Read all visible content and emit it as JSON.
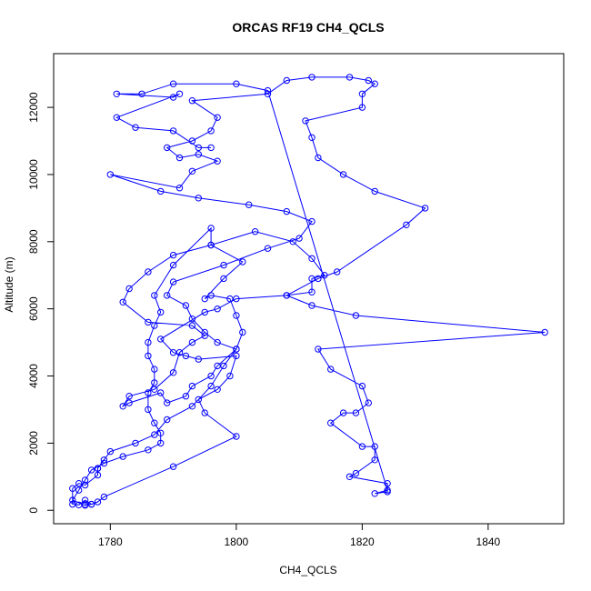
{
  "chart_data": {
    "type": "line",
    "title": "ORCAS RF19 CH4_QCLS",
    "xlabel": "CH4_QCLS",
    "ylabel": "Altitude (m)",
    "xlim": [
      1771,
      1852
    ],
    "ylim": [
      -400,
      13600
    ],
    "x_ticks": [
      1780,
      1800,
      1820,
      1840
    ],
    "y_ticks": [
      0,
      2000,
      4000,
      6000,
      8000,
      10000,
      12000
    ],
    "x_tick_labels": [
      "1780",
      "1800",
      "1820",
      "1840"
    ],
    "y_tick_labels": [
      "0",
      "2000",
      "4000",
      "6000",
      "8000",
      "10000",
      "12000"
    ],
    "markers": "open-circle",
    "series": [
      {
        "color": "#0000ff",
        "points": [
          [
            1776,
            170
          ],
          [
            1777,
            180
          ],
          [
            1776,
            300
          ],
          [
            1775,
            160
          ],
          [
            1774,
            180
          ],
          [
            1774,
            650
          ],
          [
            1775,
            800
          ],
          [
            1776,
            750
          ],
          [
            1778,
            1050
          ],
          [
            1778,
            1250
          ],
          [
            1778,
            1250
          ],
          [
            1779,
            1500
          ],
          [
            1780,
            1750
          ],
          [
            1784,
            2000
          ],
          [
            1787,
            2250
          ],
          [
            1789,
            2700
          ],
          [
            1793,
            3100
          ],
          [
            1796,
            3700
          ],
          [
            1798,
            4300
          ],
          [
            1800,
            4800
          ],
          [
            1801,
            5300
          ],
          [
            1800,
            5800
          ],
          [
            1799,
            6300
          ],
          [
            1796,
            6400
          ],
          [
            1795,
            6300
          ],
          [
            1798,
            6900
          ],
          [
            1801,
            7400
          ],
          [
            1796,
            7900
          ],
          [
            1796,
            8400
          ],
          [
            1790,
            7300
          ],
          [
            1787,
            6400
          ],
          [
            1788,
            5900
          ],
          [
            1787,
            5500
          ],
          [
            1786,
            5000
          ],
          [
            1786,
            4600
          ],
          [
            1787,
            4200
          ],
          [
            1787,
            3800
          ],
          [
            1786,
            3500
          ],
          [
            1786,
            3000
          ],
          [
            1787,
            2600
          ],
          [
            1788,
            2300
          ],
          [
            1788,
            2000
          ],
          [
            1786,
            1800
          ],
          [
            1782,
            1600
          ],
          [
            1779,
            1400
          ],
          [
            1777,
            1200
          ],
          [
            1776,
            900
          ],
          [
            1775,
            600
          ],
          [
            1774,
            300
          ],
          [
            1776,
            150
          ],
          [
            1777,
            180
          ],
          [
            1778,
            250
          ],
          [
            1779,
            400
          ],
          [
            1790,
            1300
          ],
          [
            1800,
            2200
          ],
          [
            1795,
            2900
          ],
          [
            1794,
            3300
          ],
          [
            1797,
            3600
          ],
          [
            1799,
            4000
          ],
          [
            1800,
            4600
          ],
          [
            1794,
            4500
          ],
          [
            1792,
            4600
          ],
          [
            1790,
            4700
          ],
          [
            1788,
            5100
          ],
          [
            1795,
            5900
          ],
          [
            1797,
            6000
          ],
          [
            1800,
            6300
          ],
          [
            1808,
            6400
          ],
          [
            1812,
            6500
          ],
          [
            1812,
            6900
          ],
          [
            1814,
            7000
          ],
          [
            1812,
            7500
          ],
          [
            1809,
            8000
          ],
          [
            1803,
            8300
          ],
          [
            1796,
            7900
          ],
          [
            1790,
            7600
          ],
          [
            1786,
            7100
          ],
          [
            1783,
            6600
          ],
          [
            1782,
            6200
          ],
          [
            1786,
            5600
          ],
          [
            1793,
            5500
          ],
          [
            1795,
            5200
          ],
          [
            1793,
            5000
          ],
          [
            1791,
            4700
          ],
          [
            1790,
            4100
          ],
          [
            1787,
            3600
          ],
          [
            1783,
            3400
          ],
          [
            1782,
            3100
          ],
          [
            1783,
            3200
          ],
          [
            1788,
            3500
          ],
          [
            1789,
            3200
          ],
          [
            1792,
            3400
          ],
          [
            1793,
            3700
          ],
          [
            1796,
            4000
          ],
          [
            1797,
            4300
          ],
          [
            1800,
            4800
          ],
          [
            1797,
            5000
          ],
          [
            1795,
            5300
          ],
          [
            1793,
            5700
          ],
          [
            1792,
            6100
          ],
          [
            1789,
            6400
          ],
          [
            1790,
            6800
          ],
          [
            1798,
            7300
          ],
          [
            1805,
            7800
          ],
          [
            1810,
            8100
          ],
          [
            1812,
            8600
          ],
          [
            1808,
            8900
          ],
          [
            1802,
            9100
          ],
          [
            1794,
            9300
          ],
          [
            1788,
            9500
          ],
          [
            1780,
            10000
          ],
          [
            1791,
            9600
          ],
          [
            1793,
            10100
          ],
          [
            1797,
            10400
          ],
          [
            1794,
            10600
          ],
          [
            1791,
            10500
          ],
          [
            1789,
            10800
          ],
          [
            1793,
            11000
          ],
          [
            1796,
            11300
          ],
          [
            1797,
            11700
          ],
          [
            1793,
            12200
          ],
          [
            1805,
            12400
          ],
          [
            1808,
            12800
          ],
          [
            1812,
            12900
          ],
          [
            1818,
            12900
          ],
          [
            1821,
            12800
          ],
          [
            1822,
            12700
          ],
          [
            1820,
            12400
          ],
          [
            1820,
            12000
          ],
          [
            1811,
            11600
          ],
          [
            1812,
            11100
          ],
          [
            1813,
            10500
          ],
          [
            1817,
            10000
          ],
          [
            1822,
            9500
          ],
          [
            1830,
            9000
          ],
          [
            1827,
            8500
          ],
          [
            1816,
            7100
          ],
          [
            1813,
            6900
          ],
          [
            1808,
            6400
          ],
          [
            1812,
            6100
          ],
          [
            1819,
            5800
          ],
          [
            1849,
            5300
          ],
          [
            1813,
            4800
          ],
          [
            1815,
            4200
          ],
          [
            1820,
            3700
          ],
          [
            1821,
            3200
          ],
          [
            1819,
            2900
          ],
          [
            1817,
            2900
          ],
          [
            1815,
            2600
          ],
          [
            1820,
            1900
          ],
          [
            1822,
            1900
          ],
          [
            1822,
            1500
          ],
          [
            1819,
            1100
          ],
          [
            1818,
            1000
          ],
          [
            1824,
            800
          ],
          [
            1824,
            550
          ],
          [
            1822,
            500
          ],
          [
            1824,
            600
          ],
          [
            1805,
            12500
          ],
          [
            1800,
            12700
          ],
          [
            1790,
            12700
          ],
          [
            1785,
            12400
          ],
          [
            1781,
            12400
          ],
          [
            1790,
            12300
          ],
          [
            1791,
            12400
          ],
          [
            1781,
            11700
          ],
          [
            1784,
            11400
          ],
          [
            1790,
            11300
          ],
          [
            1794,
            10800
          ],
          [
            1796,
            10800
          ]
        ]
      }
    ]
  }
}
